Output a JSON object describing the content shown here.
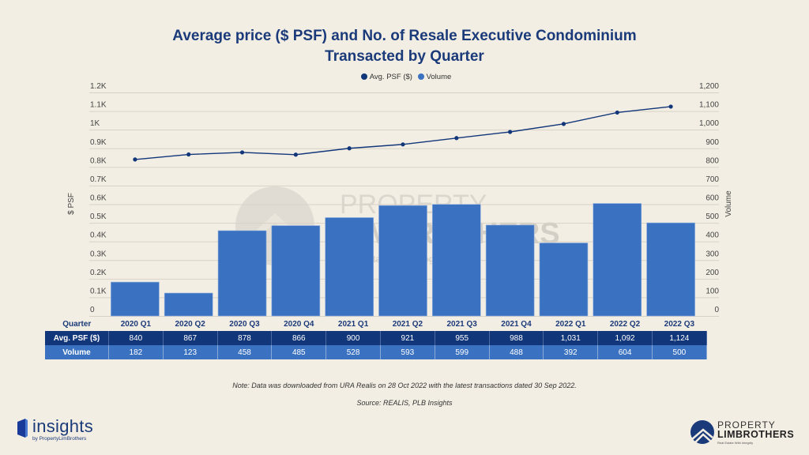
{
  "title_line1": "Average price ($ PSF) and No. of Resale Executive Condominium",
  "title_line2": "Transacted by Quarter",
  "legend": [
    {
      "label": "Avg. PSF ($)",
      "color": "#12367a"
    },
    {
      "label": "Volume",
      "color": "#3a72c1"
    }
  ],
  "chart_data": {
    "type": "bar",
    "title": "Average price ($ PSF) and No. of Resale Executive Condominium Transacted by Quarter",
    "categories": [
      "2020 Q1",
      "2020 Q2",
      "2020 Q3",
      "2020 Q4",
      "2021 Q1",
      "2021 Q2",
      "2021 Q3",
      "2021 Q4",
      "2022 Q1",
      "2022 Q2",
      "2022 Q3"
    ],
    "series": [
      {
        "name": "Avg. PSF ($)",
        "type": "line",
        "axis": "left",
        "color": "#12367a",
        "values": [
          840,
          867,
          878,
          866,
          900,
          921,
          955,
          988,
          1031,
          1092,
          1124
        ]
      },
      {
        "name": "Volume",
        "type": "bar",
        "axis": "right",
        "color": "#3a72c1",
        "values": [
          182,
          123,
          458,
          485,
          528,
          593,
          599,
          488,
          392,
          604,
          500
        ]
      }
    ],
    "ylabel_left": "$ PSF",
    "ylabel_right": "Volume",
    "ylim_left": [
      0,
      1200
    ],
    "ylim_right": [
      0,
      1200
    ],
    "left_ticks": [
      "0",
      "0.1K",
      "0.2K",
      "0.3K",
      "0.4K",
      "0.5K",
      "0.6K",
      "0.7K",
      "0.8K",
      "0.9K",
      "1K",
      "1.1K",
      "1.2K"
    ],
    "right_ticks": [
      "0",
      "100",
      "200",
      "300",
      "400",
      "500",
      "600",
      "700",
      "800",
      "900",
      "1,000",
      "1,100",
      "1,200"
    ],
    "grid": true,
    "legend_position": "top-center"
  },
  "table": {
    "header_label": "Quarter",
    "psf_label": "Avg. PSF ($)",
    "volume_label": "Volume",
    "psf_values": [
      "840",
      "867",
      "878",
      "866",
      "900",
      "921",
      "955",
      "988",
      "1,031",
      "1,092",
      "1,124"
    ],
    "volume_values": [
      "182",
      "123",
      "458",
      "485",
      "528",
      "593",
      "599",
      "488",
      "392",
      "604",
      "500"
    ]
  },
  "note": "Note: Data was downloaded from URA Realis on 28 Oct 2022 with the latest transactions dated 30 Sep 2022.",
  "source": "Source: REALIS, PLB Insights",
  "logo_left": {
    "word": "insights",
    "sub": "by PropertyLimBrothers"
  },
  "logo_right": {
    "line1": "PROPERTY",
    "line2": "LIMBROTHERS",
    "tagline": "Real Estate With Integrity"
  },
  "watermark": {
    "line1": "PROPERTY",
    "line2": "LIMBROTHERS",
    "tagline": "Real Estate With Integrity"
  }
}
